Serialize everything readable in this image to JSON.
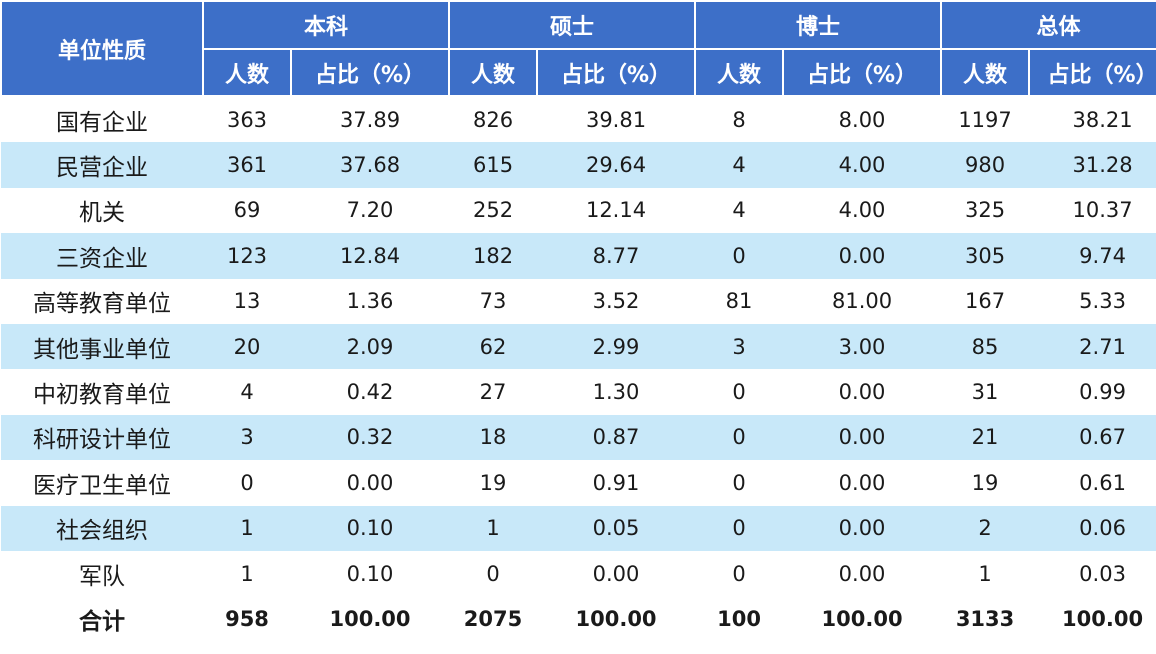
{
  "table": {
    "header": {
      "corner": "单位性质",
      "groups": [
        "本科",
        "硕士",
        "博士",
        "总体"
      ],
      "subheaders": [
        "人数",
        "占比（%）",
        "人数",
        "占比（%）",
        "人数",
        "占比（%）",
        "人数",
        "占比（%）"
      ]
    },
    "rows": [
      [
        "国有企业",
        "363",
        "37.89",
        "826",
        "39.81",
        "8",
        "8.00",
        "1197",
        "38.21"
      ],
      [
        "民营企业",
        "361",
        "37.68",
        "615",
        "29.64",
        "4",
        "4.00",
        "980",
        "31.28"
      ],
      [
        "机关",
        "69",
        "7.20",
        "252",
        "12.14",
        "4",
        "4.00",
        "325",
        "10.37"
      ],
      [
        "三资企业",
        "123",
        "12.84",
        "182",
        "8.77",
        "0",
        "0.00",
        "305",
        "9.74"
      ],
      [
        "高等教育单位",
        "13",
        "1.36",
        "73",
        "3.52",
        "81",
        "81.00",
        "167",
        "5.33"
      ],
      [
        "其他事业单位",
        "20",
        "2.09",
        "62",
        "2.99",
        "3",
        "3.00",
        "85",
        "2.71"
      ],
      [
        "中初教育单位",
        "4",
        "0.42",
        "27",
        "1.30",
        "0",
        "0.00",
        "31",
        "0.99"
      ],
      [
        "科研设计单位",
        "3",
        "0.32",
        "18",
        "0.87",
        "0",
        "0.00",
        "21",
        "0.67"
      ],
      [
        "医疗卫生单位",
        "0",
        "0.00",
        "19",
        "0.91",
        "0",
        "0.00",
        "19",
        "0.61"
      ],
      [
        "社会组织",
        "1",
        "0.10",
        "1",
        "0.05",
        "0",
        "0.00",
        "2",
        "0.06"
      ],
      [
        "军队",
        "1",
        "0.10",
        "0",
        "0.00",
        "0",
        "0.00",
        "1",
        "0.03"
      ],
      [
        "合计",
        "958",
        "100.00",
        "2075",
        "100.00",
        "100",
        "100.00",
        "3133",
        "100.00"
      ]
    ]
  }
}
